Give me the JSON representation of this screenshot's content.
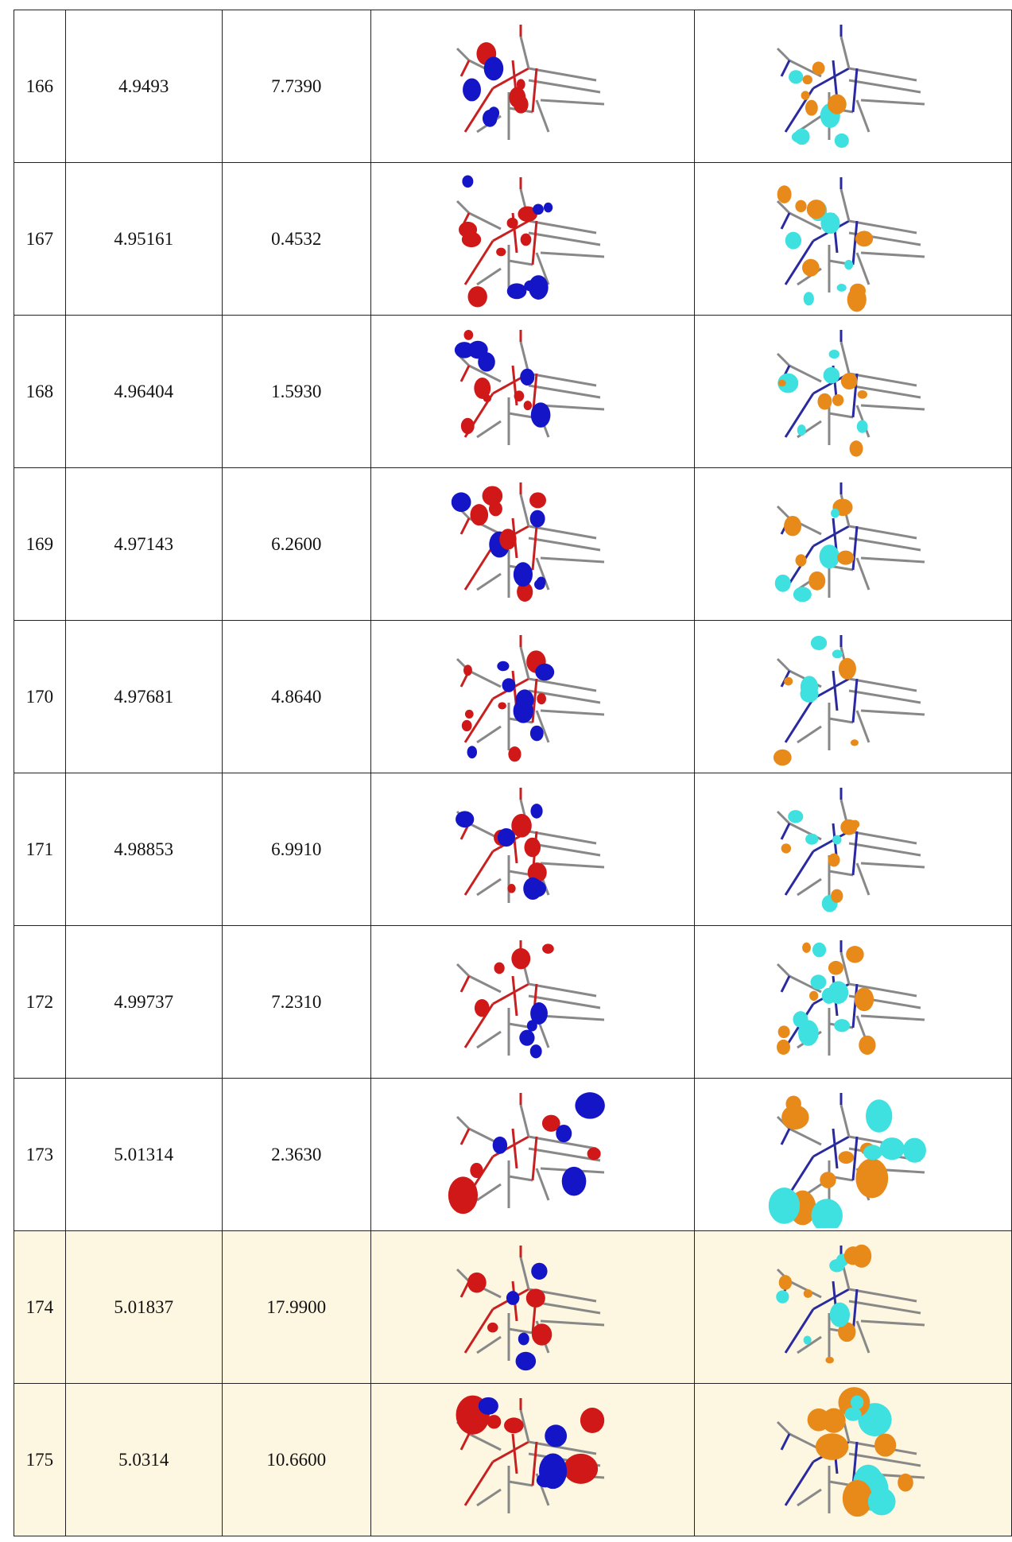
{
  "table": {
    "rows": [
      [
        "166",
        "4.9493",
        "7.7390"
      ],
      [
        "167",
        "4.95161",
        "0.4532"
      ],
      [
        "168",
        "4.96404",
        "1.5930"
      ],
      [
        "169",
        "4.97143",
        "6.2600"
      ],
      [
        "170",
        "4.97681",
        "4.8640"
      ],
      [
        "171",
        "4.98853",
        "6.9910"
      ],
      [
        "172",
        "4.99737",
        "7.2310"
      ],
      [
        "173",
        "5.01314",
        "2.3630"
      ],
      [
        "174",
        "5.01837",
        "17.9900"
      ],
      [
        "175",
        "5.0314",
        "10.6600"
      ]
    ]
  }
}
